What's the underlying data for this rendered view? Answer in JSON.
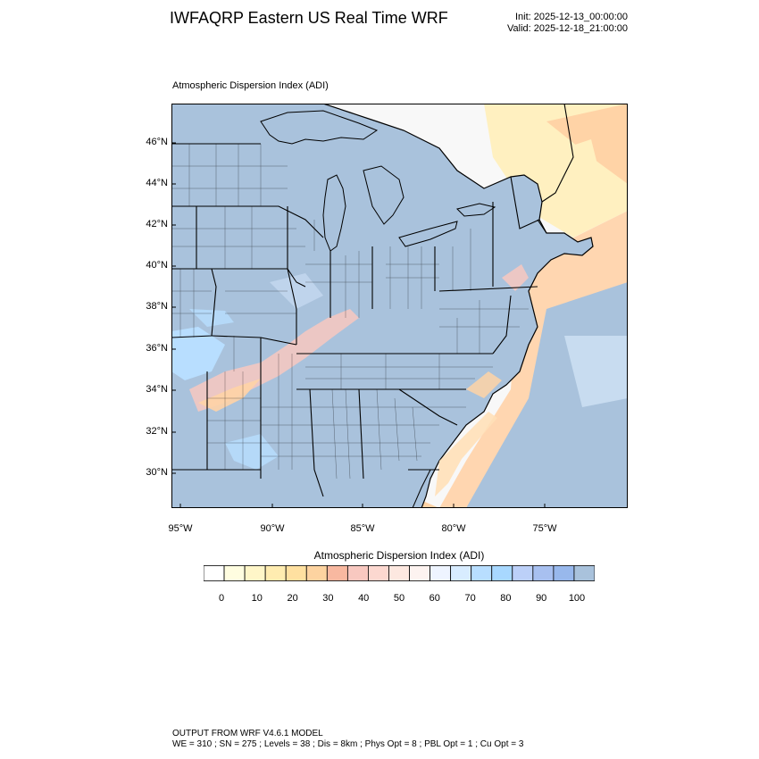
{
  "header": {
    "title": "IWFAQRP Eastern US Real Time WRF",
    "init": "Init: 2025-12-13_00:00:00",
    "valid": "Valid: 2025-12-18_21:00:00"
  },
  "map": {
    "title": "Atmospheric Dispersion Index   (ADI)",
    "lat_labels": [
      "46°N",
      "44°N",
      "42°N",
      "40°N",
      "38°N",
      "36°N",
      "34°N",
      "32°N",
      "30°N"
    ],
    "lon_labels": [
      "95°W",
      "90°W",
      "85°W",
      "80°W",
      "75°W"
    ],
    "colors": {
      "land": "#a9c2dc",
      "ocean_blue": "#a9c2dc",
      "light_blue": "#b8deff",
      "peach": "#ffd3a6",
      "pink": "#f8c8c0",
      "yellow": "#fff6c8",
      "border": "#000000"
    }
  },
  "colorbar": {
    "title": "Atmospheric Dispersion Index  (ADI)",
    "swatches": [
      "#ffffff",
      "#fffde0",
      "#fff6c8",
      "#ffecb0",
      "#ffe0a0",
      "#fdd3a0",
      "#f8b8a0",
      "#f8c8c0",
      "#fcd8d0",
      "#fde8e0",
      "#fdf3f0",
      "#eef4ff",
      "#d8ecff",
      "#b8deff",
      "#a8d8ff",
      "#bcd0f8",
      "#a8c0f0",
      "#98b8ec",
      "#a9c2dc"
    ],
    "labels": [
      "0",
      "10",
      "20",
      "30",
      "40",
      "50",
      "60",
      "70",
      "80",
      "90",
      "100"
    ]
  },
  "footer": {
    "line1": "OUTPUT FROM WRF V4.6.1 MODEL",
    "line2": "WE = 310 ; SN = 275 ; Levels = 38 ; Dis = 8km ; Phys Opt = 8 ; PBL Opt = 1 ; Cu Opt = 3"
  }
}
